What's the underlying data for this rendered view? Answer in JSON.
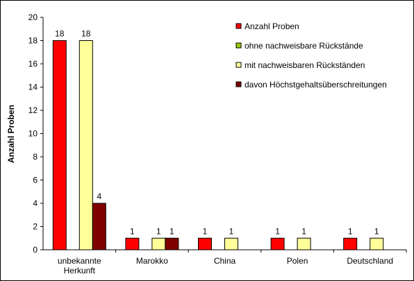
{
  "chart_data": {
    "type": "bar",
    "y_label": "Anzahl Proben",
    "categories": [
      "unbekannte Herkunft",
      "Marokko",
      "China",
      "Polen",
      "Deutschland"
    ],
    "series": [
      {
        "name": "Anzahl Proben",
        "color": "#ff0000",
        "values": [
          18,
          1,
          1,
          1,
          1
        ]
      },
      {
        "name": "ohne nachweisbare Rückstände",
        "color": "#99cc00",
        "values": [
          0,
          0,
          0,
          0,
          0
        ]
      },
      {
        "name": "mit nachweisbaren Rückständen",
        "color": "#ffff99",
        "values": [
          18,
          1,
          1,
          1,
          1
        ]
      },
      {
        "name": "davon Höchstgehaltsüberschreitungen",
        "color": "#800000",
        "values": [
          4,
          1,
          0,
          0,
          0
        ]
      }
    ],
    "ylim": [
      0,
      20
    ],
    "yticks": [
      0,
      2,
      4,
      6,
      8,
      10,
      12,
      14,
      16,
      18,
      20
    ],
    "grid": false,
    "legend": "top-right"
  }
}
